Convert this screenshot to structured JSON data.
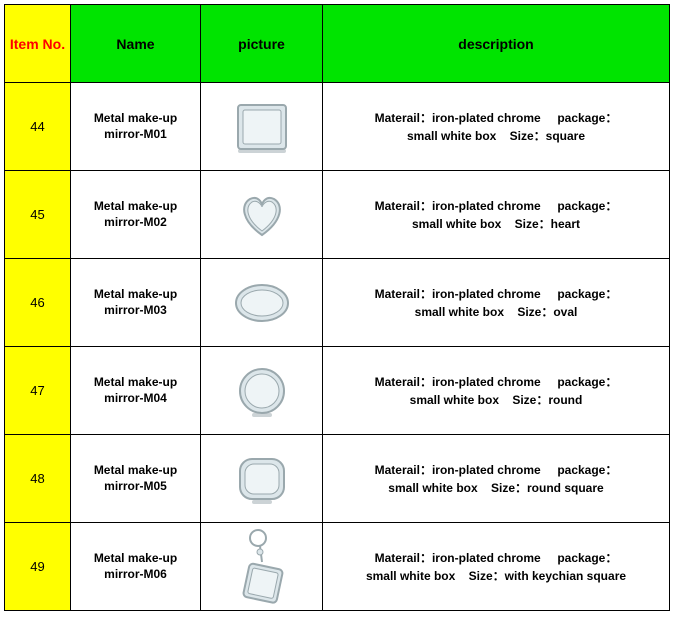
{
  "colors": {
    "header_item_bg": "#ffff00",
    "header_item_fg": "#ff0000",
    "header_green_bg": "#00e400",
    "item_cell_bg": "#ffff00",
    "border": "#000000",
    "mirror_stroke": "#9aa8ad",
    "mirror_fill": "#dce6ea",
    "mirror_face": "#eef4f6"
  },
  "columns": {
    "item": "Item No.",
    "name": "Name",
    "picture": "picture",
    "description": "description"
  },
  "rows": [
    {
      "item": "44",
      "name": "Metal make-up mirror-M01",
      "shape": "square",
      "desc_l1": "Materail：iron-plated chrome     package：",
      "desc_l2": "small white box    Size：square"
    },
    {
      "item": "45",
      "name": "Metal make-up mirror-M02",
      "shape": "heart",
      "desc_l1": "Materail：iron-plated chrome     package：",
      "desc_l2": "small white box    Size：heart"
    },
    {
      "item": "46",
      "name": "Metal make-up mirror-M03",
      "shape": "oval",
      "desc_l1": "Materail：iron-plated chrome     package：",
      "desc_l2": "small white box    Size：oval"
    },
    {
      "item": "47",
      "name": "Metal make-up mirror-M04",
      "shape": "round",
      "desc_l1": "Materail：iron-plated chrome     package：",
      "desc_l2": "small white box    Size：round"
    },
    {
      "item": "48",
      "name": "Metal make-up mirror-M05",
      "shape": "round_square",
      "desc_l1": "Materail：iron-plated chrome     package：",
      "desc_l2": "small white box    Size：round square"
    },
    {
      "item": "49",
      "name": "Metal make-up mirror-M06",
      "shape": "keychain_square",
      "desc_l1": "Materail：iron-plated chrome     package：",
      "desc_l2": "small white box    Size：with keychian square"
    }
  ]
}
